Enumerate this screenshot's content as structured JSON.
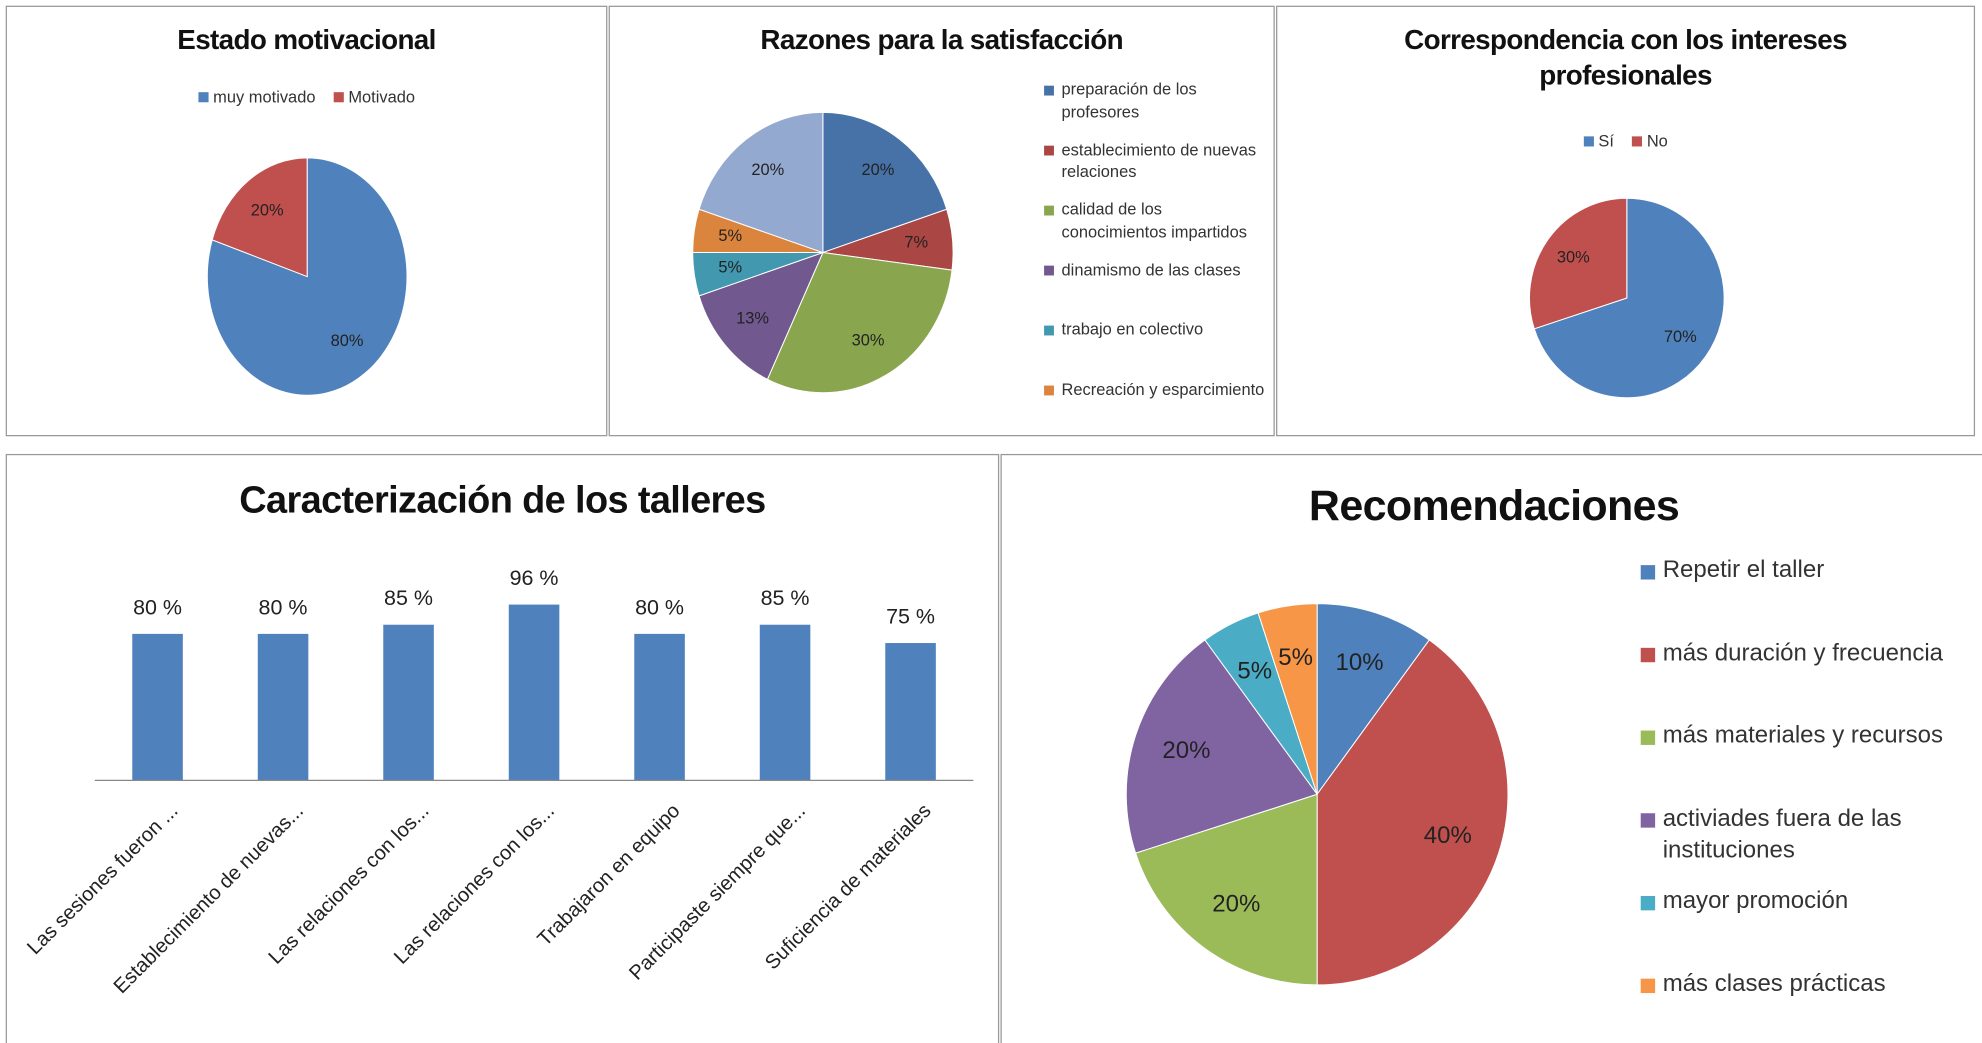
{
  "chart_data": [
    {
      "type": "pie",
      "title": "Estado motivacional",
      "categories": [
        "muy motivado",
        "Motivado"
      ],
      "values": [
        80,
        20
      ],
      "value_labels": [
        "80%",
        "20%"
      ],
      "colors": [
        "#4f81bd",
        "#c0504d"
      ],
      "legend": "top"
    },
    {
      "type": "pie",
      "title": "Razones para la satisfacción",
      "categories": [
        "preparación de los profesores",
        "establecimiento de nuevas relaciones",
        "calidad de los conocimientos impartidos",
        "dinamismo de las clases",
        "trabajo en colectivo",
        "Recreación y esparcimiento",
        null
      ],
      "values": [
        20,
        7,
        30,
        13,
        5,
        5,
        20
      ],
      "value_labels": [
        "20%",
        "7%",
        "30%",
        "13%",
        "5%",
        "5%",
        "20%"
      ],
      "colors": [
        "#4672a8",
        "#aa4643",
        "#89a54e",
        "#71588f",
        "#4198af",
        "#db843d",
        "#93a9cf"
      ],
      "legend": "right"
    },
    {
      "type": "pie",
      "title": "Correspondencia con los intereses profesionales",
      "categories": [
        "Sí",
        "No"
      ],
      "values": [
        70,
        30
      ],
      "value_labels": [
        "70%",
        "30%"
      ],
      "colors": [
        "#4f81bd",
        "#c0504d"
      ],
      "legend": "top"
    },
    {
      "type": "bar",
      "title": "Caracterización de los talleres",
      "categories": [
        "Las sesiones fueron ...",
        "Establecimiento de nuevas...",
        "Las relaciones con los...",
        "Las relaciones con los...",
        "Trabajaron en equipo",
        "Participaste siempre que...",
        "Suficiencia de materiales"
      ],
      "values": [
        80,
        80,
        85,
        96,
        80,
        85,
        75
      ],
      "value_labels": [
        "80 %",
        "80 %",
        "85 %",
        "96 %",
        "80 %",
        "85 %",
        "75 %"
      ],
      "color": "#4f81bd",
      "ylim": [
        0,
        100
      ]
    },
    {
      "type": "pie",
      "title": "Recomendaciones",
      "categories": [
        "Repetir el taller",
        "más duración y frecuencia",
        "más materiales y recursos",
        "activiades fuera de las instituciones",
        "mayor promoción",
        "más clases prácticas"
      ],
      "values": [
        10,
        40,
        20,
        20,
        5,
        5
      ],
      "value_labels": [
        "10%",
        "40%",
        "20%",
        "20%",
        "5%",
        "5%"
      ],
      "colors": [
        "#4f81bd",
        "#c0504d",
        "#9bbb59",
        "#8064a2",
        "#4bacc6",
        "#f79646"
      ],
      "legend": "right"
    }
  ]
}
